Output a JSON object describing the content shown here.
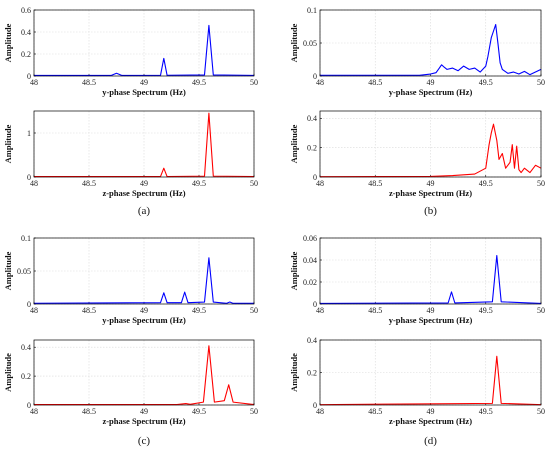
{
  "chart_data": [
    {
      "type": "line",
      "panel": "(a)",
      "caption": "(a)",
      "xlabel": "y-phase Spectrum (Hz)",
      "ylabel": "Amplitude",
      "xlim": [
        48,
        50
      ],
      "ylim": [
        0,
        0.6
      ],
      "xticks": [
        "48",
        "48.5",
        "49",
        "49.5",
        "50"
      ],
      "yticks": [
        "0",
        "0.2",
        "0.4",
        "0.6"
      ],
      "grid": true,
      "color": "#0000ff",
      "series": [
        {
          "x": [
            48,
            48.7,
            48.75,
            48.8,
            49.15,
            49.18,
            49.21,
            49.55,
            49.59,
            49.63,
            50
          ],
          "values": [
            0.005,
            0.005,
            0.025,
            0.005,
            0.006,
            0.16,
            0.006,
            0.01,
            0.46,
            0.01,
            0.005
          ]
        }
      ]
    },
    {
      "type": "line",
      "panel": "(a)",
      "caption": "",
      "xlabel": "z-phase Spectrum (Hz)",
      "ylabel": "Amplitude",
      "xlim": [
        48,
        50
      ],
      "ylim": [
        0,
        1.5
      ],
      "xticks": [
        "48",
        "48.5",
        "49",
        "49.5",
        "50"
      ],
      "yticks": [
        "0",
        "1"
      ],
      "grid": true,
      "color": "#ff0000",
      "series": [
        {
          "x": [
            48,
            49.15,
            49.18,
            49.21,
            49.55,
            49.59,
            49.63,
            50
          ],
          "values": [
            0.01,
            0.01,
            0.2,
            0.01,
            0.02,
            1.45,
            0.02,
            0.01
          ]
        }
      ]
    },
    {
      "type": "line",
      "panel": "(b)",
      "caption": "(b)",
      "xlabel": "y-phase Spectrum (Hz)",
      "ylabel": "Amplitude",
      "xlim": [
        48,
        50
      ],
      "ylim": [
        0,
        0.1
      ],
      "xticks": [
        "48",
        "48.5",
        "49",
        "49.5",
        "50"
      ],
      "yticks": [
        "0",
        "0.05",
        "0.1"
      ],
      "grid": true,
      "color": "#0000ff",
      "series": [
        {
          "x": [
            48,
            48.9,
            49.0,
            49.05,
            49.08,
            49.1,
            49.12,
            49.15,
            49.2,
            49.25,
            49.3,
            49.35,
            49.4,
            49.45,
            49.5,
            49.52,
            49.55,
            49.57,
            49.59,
            49.61,
            49.63,
            49.65,
            49.7,
            49.75,
            49.8,
            49.85,
            49.9,
            49.95,
            50
          ],
          "values": [
            0.001,
            0.001,
            0.003,
            0.005,
            0.012,
            0.017,
            0.014,
            0.01,
            0.012,
            0.008,
            0.015,
            0.01,
            0.012,
            0.006,
            0.015,
            0.03,
            0.058,
            0.068,
            0.078,
            0.05,
            0.02,
            0.01,
            0.004,
            0.006,
            0.003,
            0.007,
            0.002,
            0.006,
            0.01
          ]
        }
      ]
    },
    {
      "type": "line",
      "panel": "(b)",
      "caption": "",
      "xlabel": "z-phase Spectrum (Hz)",
      "ylabel": "Amplitude",
      "xlim": [
        48,
        50
      ],
      "ylim": [
        0,
        0.45
      ],
      "xticks": [
        "48",
        "48.5",
        "49",
        "49.5",
        "50"
      ],
      "yticks": [
        "0",
        "0.2",
        "0.4"
      ],
      "grid": true,
      "color": "#ff0000",
      "series": [
        {
          "x": [
            48,
            49.0,
            49.2,
            49.4,
            49.5,
            49.53,
            49.55,
            49.57,
            49.6,
            49.62,
            49.65,
            49.68,
            49.72,
            49.74,
            49.76,
            49.78,
            49.8,
            49.82,
            49.85,
            49.9,
            49.95,
            50
          ],
          "values": [
            0.002,
            0.004,
            0.01,
            0.02,
            0.06,
            0.22,
            0.3,
            0.36,
            0.25,
            0.12,
            0.16,
            0.06,
            0.1,
            0.22,
            0.06,
            0.21,
            0.05,
            0.03,
            0.06,
            0.03,
            0.08,
            0.06
          ]
        }
      ]
    },
    {
      "type": "line",
      "panel": "(c)",
      "caption": "(c)",
      "xlabel": "y-phase Spectrum (Hz)",
      "ylabel": "Amplitude",
      "xlim": [
        48,
        50
      ],
      "ylim": [
        0,
        0.1
      ],
      "xticks": [
        "48",
        "48.5",
        "49",
        "49.5",
        "50"
      ],
      "yticks": [
        "0",
        "0.05",
        "0.1"
      ],
      "grid": true,
      "color": "#0000ff",
      "series": [
        {
          "x": [
            48,
            49.15,
            49.18,
            49.21,
            49.34,
            49.37,
            49.4,
            49.55,
            49.59,
            49.63,
            49.75,
            49.78,
            49.81,
            50
          ],
          "values": [
            0.001,
            0.002,
            0.017,
            0.002,
            0.002,
            0.018,
            0.002,
            0.003,
            0.07,
            0.003,
            0.001,
            0.003,
            0.001,
            0.001
          ]
        }
      ]
    },
    {
      "type": "line",
      "panel": "(c)",
      "caption": "",
      "xlabel": "z-phase Spectrum (Hz)",
      "ylabel": "Amplitude",
      "xlim": [
        48,
        50
      ],
      "ylim": [
        0,
        0.45
      ],
      "xticks": [
        "48",
        "48.5",
        "49",
        "49.5",
        "50"
      ],
      "yticks": [
        "0",
        "0.2",
        "0.4"
      ],
      "grid": true,
      "color": "#ff0000",
      "series": [
        {
          "x": [
            48,
            49.3,
            49.38,
            49.42,
            49.54,
            49.59,
            49.64,
            49.73,
            49.77,
            49.81,
            50
          ],
          "values": [
            0.003,
            0.003,
            0.01,
            0.005,
            0.02,
            0.41,
            0.02,
            0.03,
            0.14,
            0.02,
            0.003
          ]
        }
      ]
    },
    {
      "type": "line",
      "panel": "(d)",
      "caption": "(d)",
      "xlabel": "y-phase Spectrum (Hz)",
      "ylabel": "Amplitude",
      "xlim": [
        48,
        50
      ],
      "ylim": [
        0,
        0.06
      ],
      "xticks": [
        "48",
        "48.5",
        "49",
        "49.5",
        "50"
      ],
      "yticks": [
        "0",
        "0.02",
        "0.04",
        "0.06"
      ],
      "grid": true,
      "color": "#0000ff",
      "series": [
        {
          "x": [
            48,
            49.16,
            49.19,
            49.22,
            49.56,
            49.6,
            49.64,
            50
          ],
          "values": [
            0.0005,
            0.001,
            0.011,
            0.001,
            0.002,
            0.044,
            0.002,
            0.0005
          ]
        }
      ]
    },
    {
      "type": "line",
      "panel": "(d)",
      "caption": "",
      "xlabel": "z-phase Spectrum (Hz)",
      "ylabel": "Amplitude",
      "xlim": [
        48,
        50
      ],
      "ylim": [
        0,
        0.4
      ],
      "xticks": [
        "48",
        "48.5",
        "49",
        "49.5",
        "50"
      ],
      "yticks": [
        "0",
        "0.2",
        "0.4"
      ],
      "grid": true,
      "color": "#ff0000",
      "series": [
        {
          "x": [
            48,
            49.56,
            49.6,
            49.64,
            50
          ],
          "values": [
            0.002,
            0.01,
            0.3,
            0.01,
            0.002
          ]
        }
      ]
    }
  ]
}
